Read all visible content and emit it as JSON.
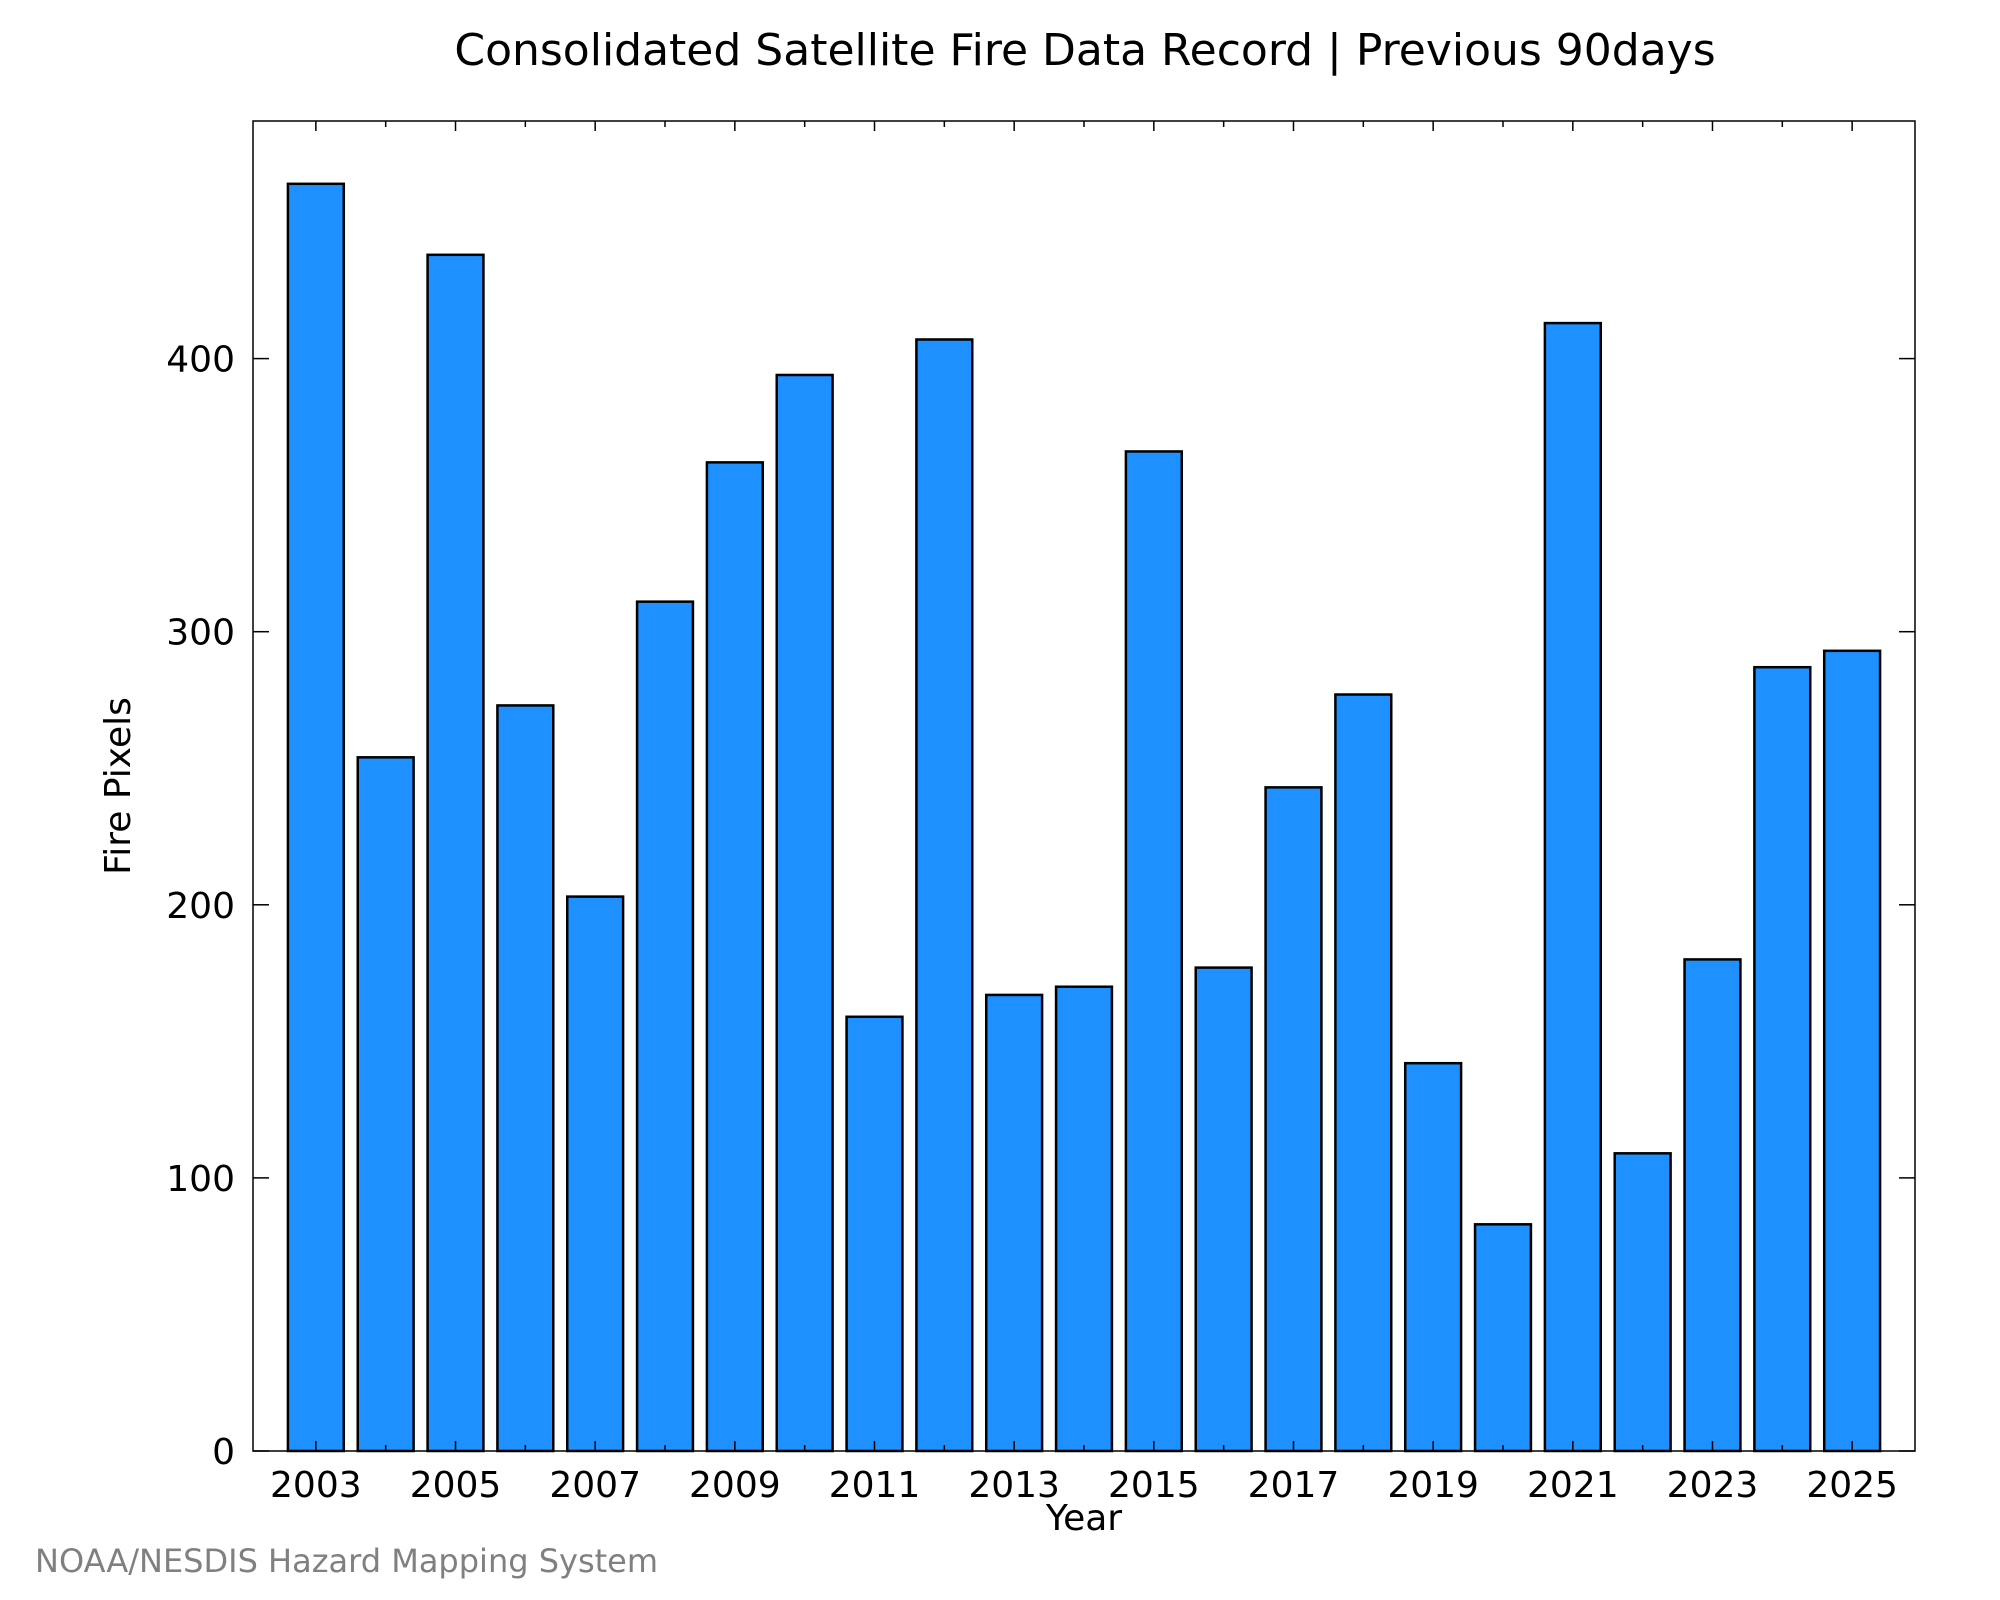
{
  "chart_data": {
    "type": "bar",
    "title": "Consolidated Satellite Fire Data Record | Previous 90days",
    "xlabel": "Year",
    "ylabel": "Fire Pixels",
    "categories": [
      "2003",
      "2004",
      "2005",
      "2006",
      "2007",
      "2008",
      "2009",
      "2010",
      "2011",
      "2012",
      "2013",
      "2014",
      "2015",
      "2016",
      "2017",
      "2018",
      "2019",
      "2020",
      "2021",
      "2022",
      "2023",
      "2024",
      "2025"
    ],
    "values": [
      464,
      254,
      438,
      273,
      203,
      311,
      362,
      394,
      159,
      407,
      167,
      170,
      366,
      177,
      243,
      277,
      142,
      83,
      413,
      109,
      180,
      287,
      293
    ],
    "x_tick_labels": [
      "2003",
      "2005",
      "2007",
      "2009",
      "2011",
      "2013",
      "2015",
      "2017",
      "2019",
      "2021",
      "2023",
      "2025"
    ],
    "y_tick_labels": [
      "0",
      "100",
      "200",
      "300",
      "400"
    ],
    "ylim": [
      0,
      487
    ],
    "grid": false,
    "bar_color": "#1e90ff",
    "edge_color": "#000000"
  },
  "credit": "NOAA/NESDIS Hazard Mapping System"
}
